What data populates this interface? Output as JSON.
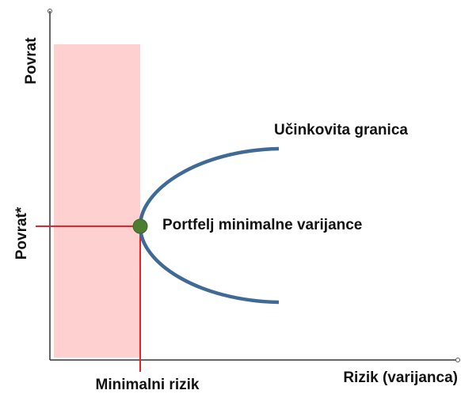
{
  "labels": {
    "y_axis": "Povrat",
    "y_marker": "Povrat*",
    "x_axis": "Rizik (varijanca)",
    "x_marker": "Minimalni rizik",
    "frontier": "Učinkovita granica",
    "min_variance": "Portfelj minimalne varijance"
  }
}
